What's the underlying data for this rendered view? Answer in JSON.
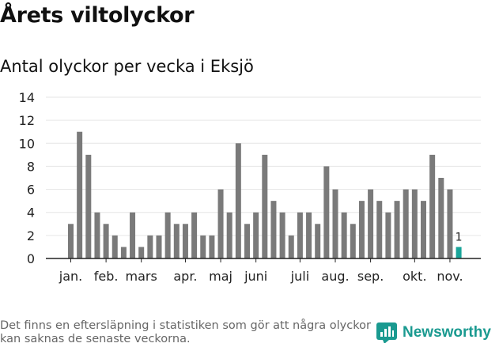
{
  "title": "Årets viltolyckor",
  "subtitle": "Antal olyckor per vecka i Eksjö",
  "footnote": "Det finns en eftersläpning i statistiken som gör att några olyckor kan saknas de senaste veckorna.",
  "brand": {
    "name": "Newsworthy",
    "icon": "newsworthy-logo-icon",
    "color": "#1a9a90"
  },
  "colors": {
    "bar": "#7a7a7a",
    "highlight": "#1aa59a",
    "grid": "#e6e6e6"
  },
  "chart_data": {
    "type": "bar",
    "title": "",
    "xlabel": "",
    "ylabel": "",
    "ylim": [
      0,
      14
    ],
    "yticks": [
      0,
      2,
      4,
      6,
      8,
      10,
      12,
      14
    ],
    "grid": true,
    "weeks": [
      1,
      2,
      3,
      4,
      5,
      6,
      7,
      8,
      9,
      10,
      11,
      12,
      13,
      14,
      15,
      16,
      17,
      18,
      19,
      20,
      21,
      22,
      23,
      24,
      25,
      26,
      27,
      28,
      29,
      30,
      31,
      32,
      33,
      34,
      35,
      36,
      37,
      38,
      39,
      40,
      41,
      42,
      43,
      44,
      45
    ],
    "values": [
      3,
      11,
      9,
      4,
      3,
      2,
      1,
      4,
      1,
      2,
      2,
      4,
      3,
      3,
      4,
      2,
      2,
      6,
      4,
      10,
      3,
      4,
      9,
      5,
      4,
      2,
      4,
      4,
      3,
      8,
      6,
      4,
      3,
      5,
      6,
      5,
      4,
      5,
      6,
      6,
      5,
      9,
      7,
      6,
      1
    ],
    "highlight_index": 44,
    "highlight_label": "1",
    "month_labels": [
      {
        "label": "jan.",
        "week": 1
      },
      {
        "label": "feb.",
        "week": 5
      },
      {
        "label": "mars",
        "week": 9
      },
      {
        "label": "apr.",
        "week": 14
      },
      {
        "label": "maj",
        "week": 18
      },
      {
        "label": "juni",
        "week": 22
      },
      {
        "label": "juli",
        "week": 27
      },
      {
        "label": "aug.",
        "week": 31
      },
      {
        "label": "sep.",
        "week": 35
      },
      {
        "label": "okt.",
        "week": 40
      },
      {
        "label": "nov.",
        "week": 44
      }
    ]
  }
}
